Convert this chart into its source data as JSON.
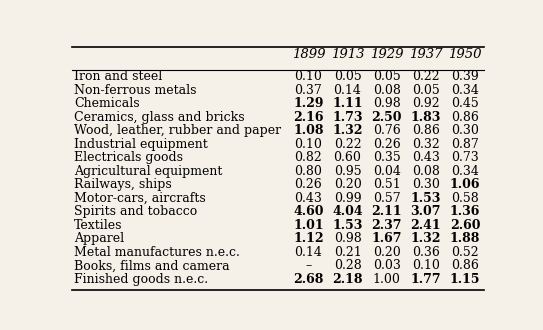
{
  "columns": [
    "1899",
    "1913",
    "1929",
    "1937",
    "1950"
  ],
  "rows": [
    {
      "label": "Iron and steel",
      "values": [
        "0.10",
        "0.05",
        "0.05",
        "0.22",
        "0.39"
      ],
      "bold": [
        false,
        false,
        false,
        false,
        false
      ]
    },
    {
      "label": "Non-ferrous metals",
      "values": [
        "0.37",
        "0.14",
        "0.08",
        "0.05",
        "0.34"
      ],
      "bold": [
        false,
        false,
        false,
        false,
        false
      ]
    },
    {
      "label": "Chemicals",
      "values": [
        "1.29",
        "1.11",
        "0.98",
        "0.92",
        "0.45"
      ],
      "bold": [
        true,
        true,
        false,
        false,
        false
      ]
    },
    {
      "label": "Ceramics, glass and bricks",
      "values": [
        "2.16",
        "1.73",
        "2.50",
        "1.83",
        "0.86"
      ],
      "bold": [
        true,
        true,
        true,
        true,
        false
      ]
    },
    {
      "label": "Wood, leather, rubber and paper",
      "values": [
        "1.08",
        "1.32",
        "0.76",
        "0.86",
        "0.30"
      ],
      "bold": [
        true,
        true,
        false,
        false,
        false
      ]
    },
    {
      "label": "Industrial equipment",
      "values": [
        "0.10",
        "0.22",
        "0.26",
        "0.32",
        "0.87"
      ],
      "bold": [
        false,
        false,
        false,
        false,
        false
      ]
    },
    {
      "label": "Electricals goods",
      "values": [
        "0.82",
        "0.60",
        "0.35",
        "0.43",
        "0.73"
      ],
      "bold": [
        false,
        false,
        false,
        false,
        false
      ]
    },
    {
      "label": "Agricultural equipment",
      "values": [
        "0.80",
        "0.95",
        "0.04",
        "0.08",
        "0.34"
      ],
      "bold": [
        false,
        false,
        false,
        false,
        false
      ]
    },
    {
      "label": "Railways, ships",
      "values": [
        "0.26",
        "0.20",
        "0.51",
        "0.30",
        "1.06"
      ],
      "bold": [
        false,
        false,
        false,
        false,
        true
      ]
    },
    {
      "label": "Motor-cars, aircrafts",
      "values": [
        "0.43",
        "0.99",
        "0.57",
        "1.53",
        "0.58"
      ],
      "bold": [
        false,
        false,
        false,
        true,
        false
      ]
    },
    {
      "label": "Spirits and tobacco",
      "values": [
        "4.60",
        "4.04",
        "2.11",
        "3.07",
        "1.36"
      ],
      "bold": [
        true,
        true,
        true,
        true,
        true
      ]
    },
    {
      "label": "Textiles",
      "values": [
        "1.01",
        "1.53",
        "2.37",
        "2.41",
        "2.60"
      ],
      "bold": [
        true,
        true,
        true,
        true,
        true
      ]
    },
    {
      "label": "Apparel",
      "values": [
        "1.12",
        "0.98",
        "1.67",
        "1.32",
        "1.88"
      ],
      "bold": [
        true,
        false,
        true,
        true,
        true
      ]
    },
    {
      "label": "Metal manufactures n.e.c.",
      "values": [
        "0.14",
        "0.21",
        "0.20",
        "0.36",
        "0.52"
      ],
      "bold": [
        false,
        false,
        false,
        false,
        false
      ]
    },
    {
      "label": "Books, films and camera",
      "values": [
        "–",
        "0.28",
        "0.03",
        "0.10",
        "0.86"
      ],
      "bold": [
        false,
        false,
        false,
        false,
        false
      ]
    },
    {
      "label": "Finished goods n.e.c.",
      "values": [
        "2.68",
        "2.18",
        "1.00",
        "1.77",
        "1.15"
      ],
      "bold": [
        true,
        true,
        false,
        true,
        true
      ]
    }
  ],
  "bg_color": "#f5f0e8",
  "text_color": "#000000",
  "header_fontsize": 9.5,
  "cell_fontsize": 9.0,
  "label_fontsize": 9.0
}
